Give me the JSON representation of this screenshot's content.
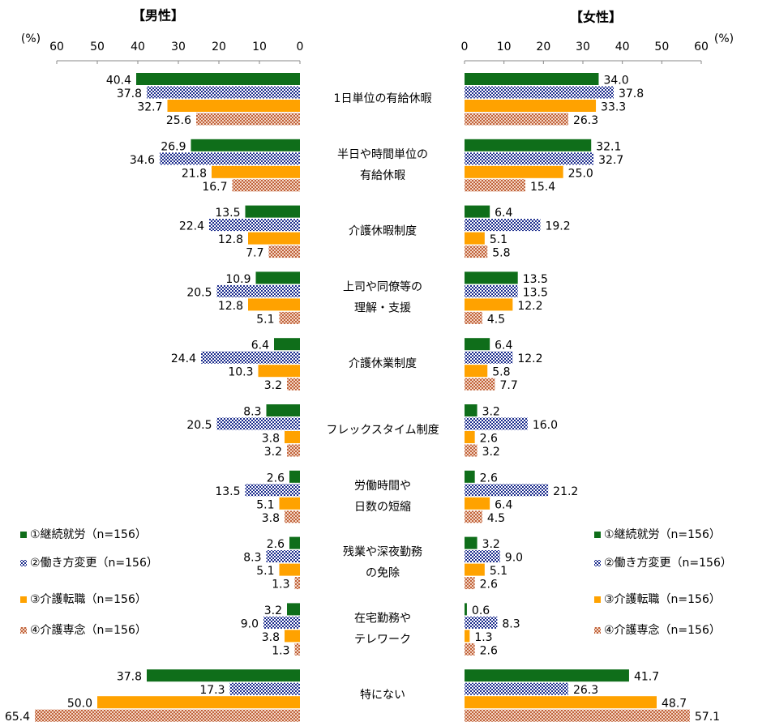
{
  "chart_data": [
    {
      "type": "bar",
      "orientation": "horizontal",
      "x_inverted": true,
      "title": "【男性】",
      "axis_label": "(%)",
      "categories": [
        "1日単位の有給休暇",
        "半日や時間単位の\n有給休暇",
        "介護休暇制度",
        "上司や同僚等の\n理解・支援",
        "介護休業制度",
        "フレックスタイム制度",
        "労働時間や\n日数の短縮",
        "残業や深夜勤務\nの免除",
        "在宅勤務や\nテレワーク",
        "特にない"
      ],
      "xlim": [
        0,
        60
      ],
      "xticks": [
        0,
        10,
        20,
        30,
        40,
        50,
        60
      ],
      "series": [
        {
          "name": "①継続就労（n=156）",
          "color": "#0f6e1a",
          "pattern": "solid",
          "values": [
            40.4,
            26.9,
            13.5,
            10.9,
            6.4,
            8.3,
            2.6,
            2.6,
            3.2,
            37.8
          ],
          "value_labels": [
            "40.4",
            "26.9",
            "13.5",
            "10.9",
            "6.4",
            "8.3",
            "2.6",
            "2.6",
            "3.2",
            "37.8"
          ]
        },
        {
          "name": "②働き方変更（n=156）",
          "color": "#1a2b8c",
          "pattern": "checker",
          "values": [
            37.8,
            34.6,
            22.4,
            20.5,
            24.4,
            20.5,
            13.5,
            8.3,
            9,
            17.3
          ],
          "value_labels": [
            "37.8",
            "34.6",
            "22.4",
            "20.5",
            "24.4",
            "20.5",
            "13.5",
            "8.3",
            "9.0",
            "17.3"
          ]
        },
        {
          "name": "③介護転職（n=156）",
          "color": "#ffa200",
          "pattern": "solid",
          "values": [
            32.7,
            21.8,
            12.8,
            12.8,
            10.3,
            3.8,
            5.1,
            5.1,
            3.8,
            50
          ],
          "value_labels": [
            "32.7",
            "21.8",
            "12.8",
            "12.8",
            "10.3",
            "3.8",
            "5.1",
            "5.1",
            "3.8",
            "50.0"
          ]
        },
        {
          "name": "④介護専念（n=156）",
          "color": "#c0623a",
          "pattern": "dots",
          "values": [
            25.6,
            16.7,
            7.7,
            5.1,
            3.2,
            3.2,
            3.8,
            1.3,
            1.3,
            65.4
          ],
          "value_labels": [
            "25.6",
            "16.7",
            "7.7",
            "5.1",
            "3.2",
            "3.2",
            "3.8",
            "1.3",
            "1.3",
            "65.4"
          ]
        }
      ]
    },
    {
      "type": "bar",
      "orientation": "horizontal",
      "x_inverted": false,
      "title": "【女性】",
      "axis_label": "(%)",
      "xlim": [
        0,
        60
      ],
      "xticks": [
        0,
        10,
        20,
        30,
        40,
        50,
        60
      ],
      "series": [
        {
          "name": "①継続就労（n=156）",
          "color": "#0f6e1a",
          "pattern": "solid",
          "values": [
            34,
            32.1,
            6.4,
            13.5,
            6.4,
            3.2,
            2.6,
            3.2,
            0.6,
            41.7
          ],
          "value_labels": [
            "34.0",
            "32.1",
            "6.4",
            "13.5",
            "6.4",
            "3.2",
            "2.6",
            "3.2",
            "0.6",
            "41.7"
          ]
        },
        {
          "name": "②働き方変更（n=156）",
          "color": "#1a2b8c",
          "pattern": "checker",
          "values": [
            37.8,
            32.7,
            19.2,
            13.5,
            12.2,
            16,
            21.2,
            9,
            8.3,
            26.3
          ],
          "value_labels": [
            "37.8",
            "32.7",
            "19.2",
            "13.5",
            "12.2",
            "16.0",
            "21.2",
            "9.0",
            "8.3",
            "26.3"
          ]
        },
        {
          "name": "③介護転職（n=156）",
          "color": "#ffa200",
          "pattern": "solid",
          "values": [
            33.3,
            25,
            5.1,
            12.2,
            5.8,
            2.6,
            6.4,
            5.1,
            1.3,
            48.7
          ],
          "value_labels": [
            "33.3",
            "25.0",
            "5.1",
            "12.2",
            "5.8",
            "2.6",
            "6.4",
            "5.1",
            "1.3",
            "48.7"
          ]
        },
        {
          "name": "④介護専念（n=156）",
          "color": "#c0623a",
          "pattern": "dots",
          "values": [
            26.3,
            15.4,
            5.8,
            4.5,
            7.7,
            3.2,
            4.5,
            2.6,
            2.6,
            57.1
          ],
          "value_labels": [
            "26.3",
            "15.4",
            "5.8",
            "4.5",
            "7.7",
            "3.2",
            "4.5",
            "2.6",
            "2.6",
            "57.1"
          ]
        }
      ]
    }
  ]
}
